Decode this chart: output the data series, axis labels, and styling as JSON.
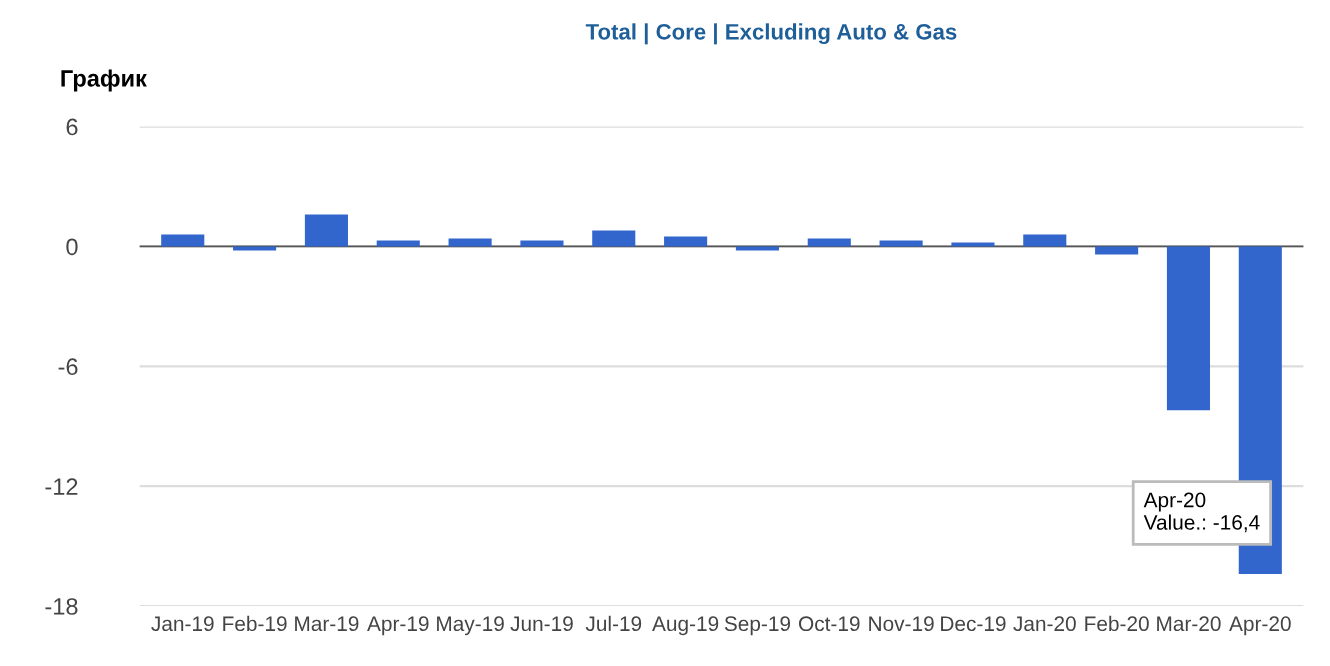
{
  "chart_data": {
    "type": "bar",
    "title": "График",
    "subtitle": "Total | Core | Excluding Auto & Gas",
    "categories": [
      "Jan-19",
      "Feb-19",
      "Mar-19",
      "Apr-19",
      "May-19",
      "Jun-19",
      "Jul-19",
      "Aug-19",
      "Sep-19",
      "Oct-19",
      "Nov-19",
      "Dec-19",
      "Jan-20",
      "Feb-20",
      "Mar-20",
      "Apr-20"
    ],
    "values": [
      0.6,
      -0.2,
      1.6,
      0.3,
      0.4,
      0.3,
      0.8,
      0.5,
      -0.2,
      0.4,
      0.3,
      0.2,
      0.6,
      -0.4,
      -8.2,
      -16.4
    ],
    "color": "#3366cc",
    "ylim": [
      -18,
      6
    ],
    "yticks": [
      -18,
      -12,
      -6,
      0,
      6
    ],
    "grid": "y",
    "annotations": [
      {
        "text": "Apr-20\nValue.: -16,4",
        "x": "Apr-20",
        "y": -16.4
      }
    ]
  }
}
